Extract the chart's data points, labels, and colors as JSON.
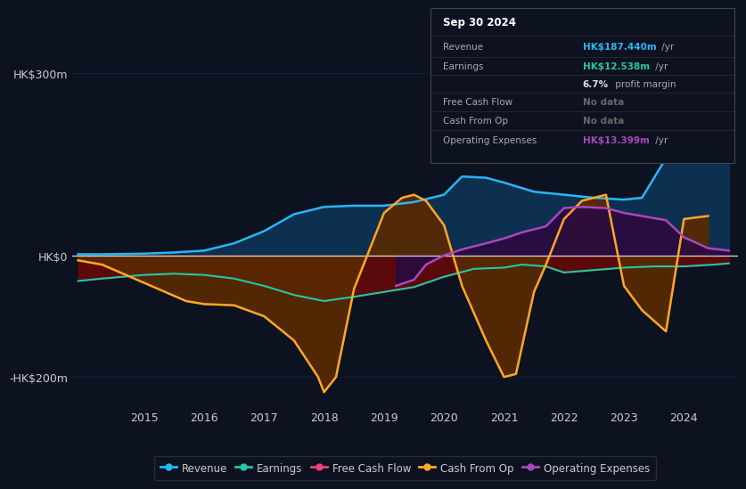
{
  "bg_color": "#0c1220",
  "plot_bg_color": "#0c1220",
  "grid_color": "#1a2a40",
  "zero_line_color": "#ffffff",
  "revenue_color": "#29b6f6",
  "revenue_fill": "#0d3050",
  "earnings_color": "#26c6a6",
  "earnings_fill": "#5a0a0a",
  "cash_from_op_color": "#ffa726",
  "cash_from_op_fill": "#5a2a00",
  "operating_expenses_color": "#ab47bc",
  "operating_expenses_fill": "#2a0a40",
  "free_cash_flow_color": "#ec407a",
  "text_color": "#cccccc",
  "tooltip_bg": "#0c1220",
  "tooltip_border": "#444444",
  "rev_x": [
    2013.9,
    2014.3,
    2015.0,
    2015.5,
    2016.0,
    2016.5,
    2017.0,
    2017.5,
    2018.0,
    2018.5,
    2019.0,
    2019.5,
    2020.0,
    2020.3,
    2020.7,
    2021.0,
    2021.5,
    2022.0,
    2022.5,
    2023.0,
    2023.3,
    2023.7,
    2024.0,
    2024.4,
    2024.75
  ],
  "rev_y": [
    2,
    2,
    3,
    5,
    8,
    20,
    40,
    68,
    80,
    82,
    82,
    88,
    100,
    130,
    128,
    120,
    105,
    100,
    95,
    92,
    95,
    160,
    250,
    210,
    187
  ],
  "earn_x": [
    2013.9,
    2014.3,
    2015.0,
    2015.5,
    2016.0,
    2016.5,
    2017.0,
    2017.5,
    2018.0,
    2018.5,
    2019.0,
    2019.5,
    2020.0,
    2020.5,
    2021.0,
    2021.3,
    2021.7,
    2022.0,
    2022.5,
    2023.0,
    2023.5,
    2024.0,
    2024.5,
    2024.75
  ],
  "earn_y": [
    -42,
    -38,
    -32,
    -30,
    -32,
    -38,
    -50,
    -65,
    -75,
    -68,
    -60,
    -52,
    -35,
    -22,
    -20,
    -15,
    -18,
    -28,
    -24,
    -20,
    -18,
    -18,
    -15,
    -13
  ],
  "cash_x": [
    2013.9,
    2014.3,
    2015.0,
    2015.7,
    2016.0,
    2016.5,
    2017.0,
    2017.5,
    2017.9,
    2018.0,
    2018.2,
    2018.5,
    2019.0,
    2019.3,
    2019.5,
    2019.7,
    2020.0,
    2020.3,
    2020.7,
    2021.0,
    2021.2,
    2021.5,
    2021.7,
    2022.0,
    2022.3,
    2022.7,
    2023.0,
    2023.3,
    2023.7,
    2024.0,
    2024.4
  ],
  "cash_y": [
    -8,
    -15,
    -45,
    -75,
    -80,
    -82,
    -100,
    -140,
    -200,
    -225,
    -200,
    -55,
    70,
    95,
    100,
    90,
    50,
    -50,
    -140,
    -200,
    -195,
    -60,
    -15,
    60,
    90,
    100,
    -50,
    -90,
    -125,
    60,
    65
  ],
  "opex_x": [
    2019.2,
    2019.5,
    2019.7,
    2020.0,
    2020.3,
    2020.7,
    2021.0,
    2021.3,
    2021.7,
    2022.0,
    2022.3,
    2022.7,
    2023.0,
    2023.3,
    2023.7,
    2024.0,
    2024.4,
    2024.75
  ],
  "opex_y": [
    -50,
    -40,
    -15,
    0,
    10,
    20,
    28,
    38,
    48,
    78,
    80,
    78,
    70,
    65,
    58,
    30,
    12,
    8
  ],
  "xlim": [
    2013.8,
    2024.9
  ],
  "ylim": [
    -250,
    370
  ],
  "ytick_vals": [
    -200,
    0,
    300
  ],
  "ytick_labels": [
    "-HK$200m",
    "HK$0",
    "HK$300m"
  ],
  "xtick_vals": [
    2015,
    2016,
    2017,
    2018,
    2019,
    2020,
    2021,
    2022,
    2023,
    2024
  ],
  "xtick_labels": [
    "2015",
    "2016",
    "2017",
    "2018",
    "2019",
    "2020",
    "2021",
    "2022",
    "2023",
    "2024"
  ]
}
